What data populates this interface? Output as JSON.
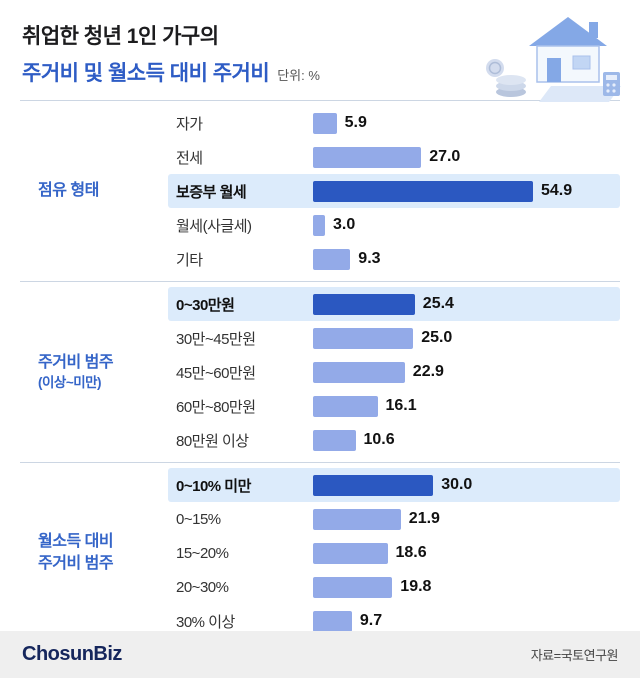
{
  "header": {
    "title_line1": "취업한 청년 1인 가구의",
    "title_line2": "주거비 및 월소득 대비 주거비",
    "unit_label": "단위: %"
  },
  "chart_data": {
    "type": "bar",
    "orientation": "horizontal",
    "value_unit": "%",
    "axis_max_hint": 54.9,
    "sections": [
      {
        "group_label_lines": [
          "점유 형태"
        ],
        "rows": [
          {
            "label": "자가",
            "value": 5.9,
            "highlight": false
          },
          {
            "label": "전세",
            "value": 27.0,
            "highlight": false
          },
          {
            "label": "보증부 월세",
            "value": 54.9,
            "highlight": true
          },
          {
            "label": "월세(사글세)",
            "value": 3.0,
            "highlight": false
          },
          {
            "label": "기타",
            "value": 9.3,
            "highlight": false
          }
        ]
      },
      {
        "group_label_lines": [
          "주거비 범주",
          "(이상~미만)"
        ],
        "rows": [
          {
            "label": "0~30만원",
            "value": 25.4,
            "highlight": true
          },
          {
            "label": "30만~45만원",
            "value": 25.0,
            "highlight": false
          },
          {
            "label": "45만~60만원",
            "value": 22.9,
            "highlight": false
          },
          {
            "label": "60만~80만원",
            "value": 16.1,
            "highlight": false
          },
          {
            "label": "80만원 이상",
            "value": 10.6,
            "highlight": false
          }
        ]
      },
      {
        "group_label_lines": [
          "월소득 대비",
          "주거비 범주"
        ],
        "rows": [
          {
            "label": "0~10% 미만",
            "value": 30.0,
            "highlight": true
          },
          {
            "label": "0~15%",
            "value": 21.9,
            "highlight": false
          },
          {
            "label": "15~20%",
            "value": 18.6,
            "highlight": false
          },
          {
            "label": "20~30%",
            "value": 19.8,
            "highlight": false
          },
          {
            "label": "30% 이상",
            "value": 9.7,
            "highlight": false
          }
        ]
      }
    ]
  },
  "footer": {
    "logo_text": "ChosunBiz",
    "source": "자료=국토연구원"
  },
  "colors": {
    "bar_normal": "#93aae8",
    "bar_highlight": "#2b58c1",
    "highlight_row_bg": "#dcebfb",
    "title_accent": "#2e5cc5",
    "group_label": "#3565c8"
  }
}
